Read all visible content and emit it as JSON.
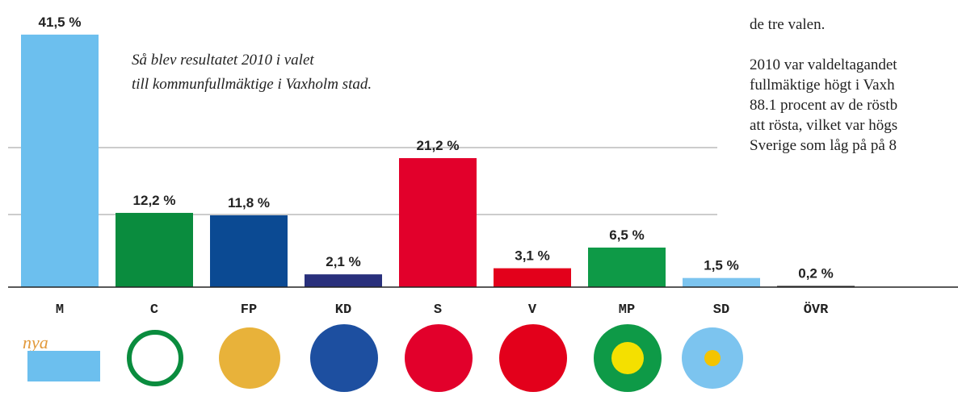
{
  "chart_data": {
    "type": "bar",
    "annotation": [
      "Så blev resultatet 2010 i valet",
      "till kommunfullmäktige i Vaxholm stad."
    ],
    "categories": [
      "M",
      "C",
      "FP",
      "KD",
      "S",
      "V",
      "MP",
      "SD",
      "ÖVR"
    ],
    "values": [
      41.5,
      12.2,
      11.8,
      2.1,
      21.2,
      3.1,
      6.5,
      1.5,
      0.2
    ],
    "value_labels": [
      "41,5 %",
      "12,2 %",
      "11,8 %",
      "2,1 %",
      "21,2 %",
      "3,1 %",
      "6,5 %",
      "1,5 %",
      "0,2 %"
    ],
    "colors": [
      "#6cbfee",
      "#0a8c3e",
      "#0b4a93",
      "#29307c",
      "#e2002b",
      "#e3001b",
      "#0e9a47",
      "#7cc4ef",
      "#222222"
    ],
    "ylim": [
      0,
      45
    ]
  },
  "side_text": {
    "top": "de tre valen.",
    "paragraph": [
      "2010 var valdeltagandet",
      "fullmäktige högt i Vaxh",
      "88.1 procent av de röstb",
      "att rösta, vilket var högs",
      "Sverige som låg på på 8"
    ]
  }
}
